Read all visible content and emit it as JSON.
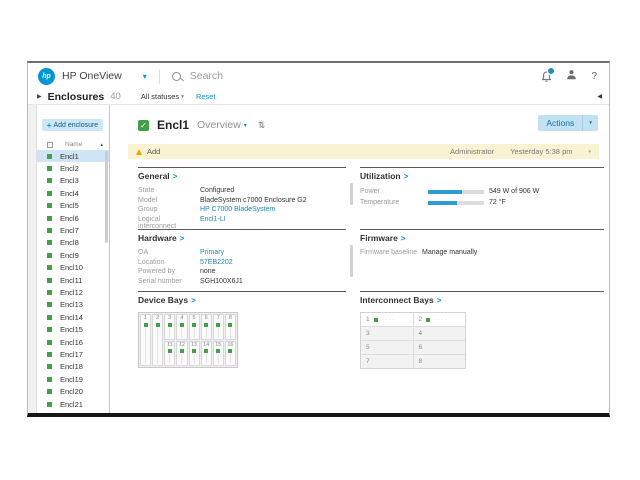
{
  "topbar": {
    "brand": "HP OneView",
    "logo_text": "hp",
    "search_placeholder": "Search",
    "help": "?"
  },
  "crumb": {
    "title": "Enclosures",
    "count": "40",
    "filter": "All statuses",
    "reset": "Reset"
  },
  "sidebar": {
    "add_label": "Add enclosure",
    "name_header": "Name",
    "items": [
      {
        "name": "Encl1",
        "selected": true
      },
      {
        "name": "Encl2"
      },
      {
        "name": "Encl3"
      },
      {
        "name": "Encl4"
      },
      {
        "name": "Encl5"
      },
      {
        "name": "Encl6"
      },
      {
        "name": "Encl7"
      },
      {
        "name": "Encl8"
      },
      {
        "name": "Encl9"
      },
      {
        "name": "Encl10"
      },
      {
        "name": "Encl11"
      },
      {
        "name": "Encl12"
      },
      {
        "name": "Encl13"
      },
      {
        "name": "Encl14"
      },
      {
        "name": "Encl15"
      },
      {
        "name": "Encl16"
      },
      {
        "name": "Encl17"
      },
      {
        "name": "Encl18"
      },
      {
        "name": "Encl19"
      },
      {
        "name": "Encl20"
      },
      {
        "name": "Encl21"
      }
    ]
  },
  "detail": {
    "title": "Encl1",
    "view": "Overview",
    "actions_label": "Actions"
  },
  "banner": {
    "label": "Add",
    "user": "Administrator",
    "time": "Yesterday 5:38 pm"
  },
  "sections": {
    "general": {
      "title": "General",
      "rows": [
        {
          "label": "State",
          "value": "Configured"
        },
        {
          "label": "Model",
          "value": "BladeSystem c7000 Enclosure G2"
        },
        {
          "label": "Group",
          "value": "HP C7000 BladeSystem",
          "link": true
        },
        {
          "label": "Logical interconnect",
          "value": "Encl1-LI",
          "link": true
        }
      ]
    },
    "utilization": {
      "title": "Utilization",
      "rows": [
        {
          "label": "Power",
          "value": "549 W of 906 W",
          "fill": 0.6
        },
        {
          "label": "Temperature",
          "value": "72 °F",
          "fill": 0.52
        }
      ]
    },
    "hardware": {
      "title": "Hardware",
      "rows": [
        {
          "label": "OA",
          "value": "Primary",
          "link": true
        },
        {
          "label": "Location",
          "value": "57EB2202",
          "link": true
        },
        {
          "label": "Powered by",
          "value": "none"
        },
        {
          "label": "Serial number",
          "value": "SGH100X6J1"
        }
      ]
    },
    "firmware": {
      "title": "Firmware",
      "rows": [
        {
          "label": "Firmware baseline",
          "value": "Manage manually"
        }
      ]
    },
    "device_bays": {
      "title": "Device Bays",
      "full_height_bays": [
        "1",
        "2"
      ],
      "top_bays": [
        "3",
        "4",
        "5",
        "6",
        "7",
        "8"
      ],
      "bottom_bays": [
        "11",
        "12",
        "13",
        "14",
        "15",
        "16"
      ]
    },
    "interconnect_bays": {
      "title": "Interconnect Bays",
      "rows": [
        {
          "cells": [
            {
              "num": "1",
              "module": true
            },
            {
              "num": "2",
              "module": true
            }
          ]
        },
        {
          "cells": [
            {
              "num": "3"
            },
            {
              "num": "4"
            }
          ]
        },
        {
          "cells": [
            {
              "num": "5"
            },
            {
              "num": "6"
            }
          ]
        },
        {
          "cells": [
            {
              "num": "7"
            },
            {
              "num": "8"
            }
          ]
        }
      ]
    }
  },
  "icons": {
    "chevron_down": "▾",
    "section_arrow": ">",
    "sort_asc": "▲",
    "expand_right": "▶",
    "collapse_left": "◀",
    "plus": "+",
    "check": "✓",
    "swap": "⇅",
    "ports": "····"
  },
  "colors": {
    "accent": "#0096d6",
    "status_ok": "#43a047",
    "warning": "#e8a800",
    "banner_bg": "#faf3d3",
    "selected_bg": "#cfe4f5",
    "bar_fill": "#2e9bd6"
  }
}
